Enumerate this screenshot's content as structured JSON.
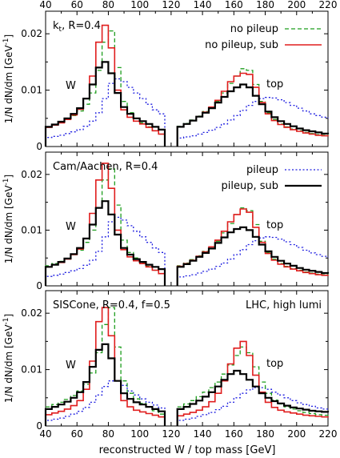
{
  "chart_data": {
    "type": "line",
    "xlabel": "reconstructed W / top mass [GeV]",
    "ylabel": "1/N dN/dm [GeV",
    "ylabel_sup": "-1",
    "ylabel_close": "]",
    "xlim": [
      40,
      220
    ],
    "ylim": [
      0,
      0.024
    ],
    "x_ticks": [
      40,
      60,
      80,
      100,
      120,
      140,
      160,
      180,
      200,
      220
    ],
    "y_ticks": [
      0,
      0.01,
      0.02
    ],
    "y_tick_labels": [
      "0",
      "0.01",
      "0.02"
    ],
    "grid": false,
    "x_grid": [
      40,
      44,
      48,
      52,
      56,
      60,
      64,
      68,
      72,
      76,
      80,
      84,
      88,
      92,
      96,
      100,
      104,
      108,
      112,
      116,
      124,
      128,
      132,
      136,
      140,
      144,
      148,
      152,
      156,
      160,
      164,
      168,
      172,
      176,
      180,
      184,
      188,
      192,
      196,
      200,
      204,
      208,
      212,
      216,
      220
    ],
    "colors": {
      "no_pileup": "#1e9e1e",
      "no_pileup_sub": "#e01e1e",
      "pileup": "#1e1ee0",
      "pileup_sub": "#000000"
    },
    "panels": [
      {
        "label": "k",
        "label_sub": "t",
        "label_rest": ", R=0.4",
        "corner_label": "",
        "peak_labels": [
          "W",
          "top"
        ],
        "legend": [
          {
            "name": "no pileup",
            "key": "no_pileup"
          },
          {
            "name": "no pileup, sub",
            "key": "no_pileup_sub"
          }
        ],
        "series": {
          "no_pileup": {
            "w": [
              0.0035,
              0.0039,
              0.0043,
              0.0048,
              0.0055,
              0.0063,
              0.0075,
              0.0095,
              0.0135,
              0.0185,
              0.0205,
              0.014,
              0.008,
              0.006,
              0.005,
              0.0042,
              0.0035,
              0.0028,
              0.0022
            ],
            "top": [
              0.0036,
              0.0041,
              0.0047,
              0.0054,
              0.0062,
              0.007,
              0.008,
              0.0095,
              0.0112,
              0.0125,
              0.0138,
              0.0135,
              0.011,
              0.008,
              0.006,
              0.0048,
              0.004,
              0.0035,
              0.0031,
              0.0028,
              0.0025,
              0.0023,
              0.0021,
              0.002,
              0.0019
            ]
          },
          "no_pileup_sub": {
            "w": [
              0.0034,
              0.0038,
              0.0042,
              0.0048,
              0.0056,
              0.0066,
              0.0085,
              0.0125,
              0.0185,
              0.0215,
              0.0175,
              0.01,
              0.0065,
              0.0052,
              0.0045,
              0.004,
              0.0034,
              0.0028,
              0.0022
            ],
            "top": [
              0.0035,
              0.004,
              0.0046,
              0.0053,
              0.0061,
              0.007,
              0.0082,
              0.0098,
              0.0115,
              0.0125,
              0.013,
              0.0128,
              0.0105,
              0.0078,
              0.0058,
              0.0046,
              0.0039,
              0.0034,
              0.003,
              0.0027,
              0.0024,
              0.0022,
              0.002,
              0.0019,
              0.0018
            ]
          },
          "pileup": {
            "w": [
              0.0016,
              0.0018,
              0.002,
              0.0023,
              0.0026,
              0.003,
              0.0036,
              0.0045,
              0.006,
              0.0085,
              0.0112,
              0.012,
              0.0115,
              0.0105,
              0.0095,
              0.0085,
              0.0075,
              0.0065,
              0.0058
            ],
            "top": [
              0.0015,
              0.0017,
              0.0019,
              0.0022,
              0.0025,
              0.0029,
              0.0034,
              0.004,
              0.0047,
              0.0055,
              0.0064,
              0.0073,
              0.008,
              0.0085,
              0.0087,
              0.0086,
              0.0083,
              0.0078,
              0.0073,
              0.0068,
              0.0063,
              0.0058,
              0.0055,
              0.0052,
              0.005
            ]
          },
          "pileup_sub": {
            "w": [
              0.0035,
              0.0039,
              0.0044,
              0.005,
              0.0058,
              0.0068,
              0.0085,
              0.011,
              0.014,
              0.015,
              0.013,
              0.0095,
              0.007,
              0.0058,
              0.005,
              0.0045,
              0.004,
              0.0035,
              0.003
            ],
            "top": [
              0.0035,
              0.004,
              0.0046,
              0.0053,
              0.006,
              0.0068,
              0.0078,
              0.0088,
              0.0098,
              0.0105,
              0.011,
              0.0105,
              0.009,
              0.0075,
              0.0062,
              0.0052,
              0.0045,
              0.004,
              0.0036,
              0.0032,
              0.0029,
              0.0027,
              0.0025,
              0.0023,
              0.0022
            ]
          }
        }
      },
      {
        "label": "Cam/Aachen, R=0.4",
        "label_sub": "",
        "label_rest": "",
        "corner_label": "",
        "peak_labels": [
          "W",
          "top"
        ],
        "legend": [
          {
            "name": "pileup",
            "key": "pileup"
          },
          {
            "name": "pileup, sub",
            "key": "pileup_sub"
          }
        ],
        "series": {
          "no_pileup": {
            "w": [
              0.0036,
              0.004,
              0.0044,
              0.0049,
              0.0056,
              0.0064,
              0.0078,
              0.01,
              0.014,
              0.019,
              0.021,
              0.0145,
              0.0082,
              0.006,
              0.005,
              0.0042,
              0.0035,
              0.0028,
              0.0022
            ],
            "top": [
              0.0036,
              0.0041,
              0.0047,
              0.0054,
              0.0062,
              0.007,
              0.008,
              0.0095,
              0.0112,
              0.0128,
              0.014,
              0.0135,
              0.011,
              0.008,
              0.006,
              0.0048,
              0.004,
              0.0035,
              0.0031,
              0.0028,
              0.0025,
              0.0023,
              0.0021,
              0.002,
              0.0019
            ]
          },
          "no_pileup_sub": {
            "w": [
              0.0034,
              0.0038,
              0.0042,
              0.0048,
              0.0056,
              0.0066,
              0.0085,
              0.013,
              0.019,
              0.022,
              0.0175,
              0.01,
              0.0065,
              0.0052,
              0.0045,
              0.004,
              0.0034,
              0.0028,
              0.0022
            ],
            "top": [
              0.0035,
              0.004,
              0.0046,
              0.0053,
              0.0061,
              0.007,
              0.0082,
              0.0098,
              0.0115,
              0.0128,
              0.0138,
              0.0132,
              0.0105,
              0.0078,
              0.0058,
              0.0046,
              0.0039,
              0.0034,
              0.003,
              0.0027,
              0.0024,
              0.0022,
              0.002,
              0.0019,
              0.0018
            ]
          },
          "pileup": {
            "w": [
              0.0017,
              0.0019,
              0.0021,
              0.0024,
              0.0027,
              0.0031,
              0.0037,
              0.0046,
              0.0062,
              0.0088,
              0.0115,
              0.0123,
              0.0118,
              0.0108,
              0.0098,
              0.0088,
              0.0078,
              0.0068,
              0.006
            ],
            "top": [
              0.0016,
              0.0018,
              0.002,
              0.0023,
              0.0026,
              0.003,
              0.0035,
              0.0041,
              0.0048,
              0.0056,
              0.0065,
              0.0074,
              0.0081,
              0.0086,
              0.0088,
              0.0087,
              0.0084,
              0.0079,
              0.0074,
              0.0069,
              0.0064,
              0.0059,
              0.0056,
              0.0053,
              0.0051
            ]
          },
          "pileup_sub": {
            "w": [
              0.0034,
              0.0038,
              0.0043,
              0.0049,
              0.0057,
              0.0068,
              0.0085,
              0.011,
              0.014,
              0.0152,
              0.0128,
              0.0092,
              0.0068,
              0.0056,
              0.0048,
              0.0043,
              0.0038,
              0.0034,
              0.003
            ],
            "top": [
              0.0034,
              0.0039,
              0.0045,
              0.0052,
              0.0059,
              0.0067,
              0.0077,
              0.0087,
              0.0096,
              0.0102,
              0.0105,
              0.01,
              0.0088,
              0.0074,
              0.0062,
              0.0052,
              0.0045,
              0.004,
              0.0036,
              0.0032,
              0.0029,
              0.0027,
              0.0025,
              0.0023,
              0.0022
            ]
          }
        }
      },
      {
        "label": "SISCone, R=0.4, f=0.5",
        "label_sub": "",
        "label_rest": "",
        "corner_label": "LHC, high lumi",
        "peak_labels": [
          "W",
          "top"
        ],
        "legend": [],
        "series": {
          "no_pileup": {
            "w": [
              0.0034,
              0.0038,
              0.0042,
              0.0047,
              0.0054,
              0.0062,
              0.0074,
              0.0094,
              0.013,
              0.018,
              0.021,
              0.014,
              0.008,
              0.0058,
              0.0048,
              0.004,
              0.0034,
              0.0027,
              0.0021
            ],
            "top": [
              0.0034,
              0.0039,
              0.0045,
              0.0052,
              0.006,
              0.0068,
              0.0078,
              0.0092,
              0.0108,
              0.0125,
              0.014,
              0.013,
              0.0105,
              0.0078,
              0.0058,
              0.0046,
              0.0039,
              0.0034,
              0.003,
              0.0027,
              0.0024,
              0.0022,
              0.002,
              0.0019,
              0.0018
            ]
          },
          "no_pileup_sub": {
            "w": [
              0.002,
              0.0023,
              0.0026,
              0.003,
              0.0036,
              0.0045,
              0.0065,
              0.0115,
              0.0185,
              0.021,
              0.016,
              0.008,
              0.0045,
              0.0034,
              0.0028,
              0.0025,
              0.0022,
              0.0019,
              0.0016
            ],
            "top": [
              0.0018,
              0.0021,
              0.0024,
              0.0028,
              0.0034,
              0.0043,
              0.0058,
              0.008,
              0.011,
              0.0138,
              0.015,
              0.0125,
              0.009,
              0.006,
              0.0042,
              0.0033,
              0.0028,
              0.0025,
              0.0023,
              0.0021,
              0.0019,
              0.0018,
              0.0017,
              0.0016,
              0.0015
            ]
          },
          "pileup": {
            "w": [
              0.001,
              0.0012,
              0.0014,
              0.0017,
              0.0021,
              0.0026,
              0.0033,
              0.0042,
              0.0055,
              0.007,
              0.008,
              0.008,
              0.0072,
              0.0062,
              0.0055,
              0.0048,
              0.0042,
              0.0037,
              0.0032
            ],
            "top": [
              0.001,
              0.0012,
              0.0014,
              0.0017,
              0.002,
              0.0024,
              0.0029,
              0.0035,
              0.0042,
              0.005,
              0.0058,
              0.0064,
              0.0068,
              0.0068,
              0.0065,
              0.006,
              0.0055,
              0.005,
              0.0045,
              0.0041,
              0.0038,
              0.0035,
              0.0032,
              0.003,
              0.0028
            ]
          },
          "pileup_sub": {
            "w": [
              0.003,
              0.0034,
              0.0038,
              0.0043,
              0.005,
              0.006,
              0.0078,
              0.0105,
              0.0135,
              0.0145,
              0.012,
              0.008,
              0.0058,
              0.0048,
              0.0042,
              0.0038,
              0.0034,
              0.003,
              0.0026
            ],
            "top": [
              0.003,
              0.0034,
              0.0039,
              0.0045,
              0.0052,
              0.006,
              0.007,
              0.0082,
              0.0092,
              0.0098,
              0.0092,
              0.0082,
              0.007,
              0.0058,
              0.005,
              0.0044,
              0.004,
              0.0036,
              0.0033,
              0.0031,
              0.0029,
              0.0027,
              0.0026,
              0.0025,
              0.0024
            ]
          }
        }
      }
    ]
  }
}
